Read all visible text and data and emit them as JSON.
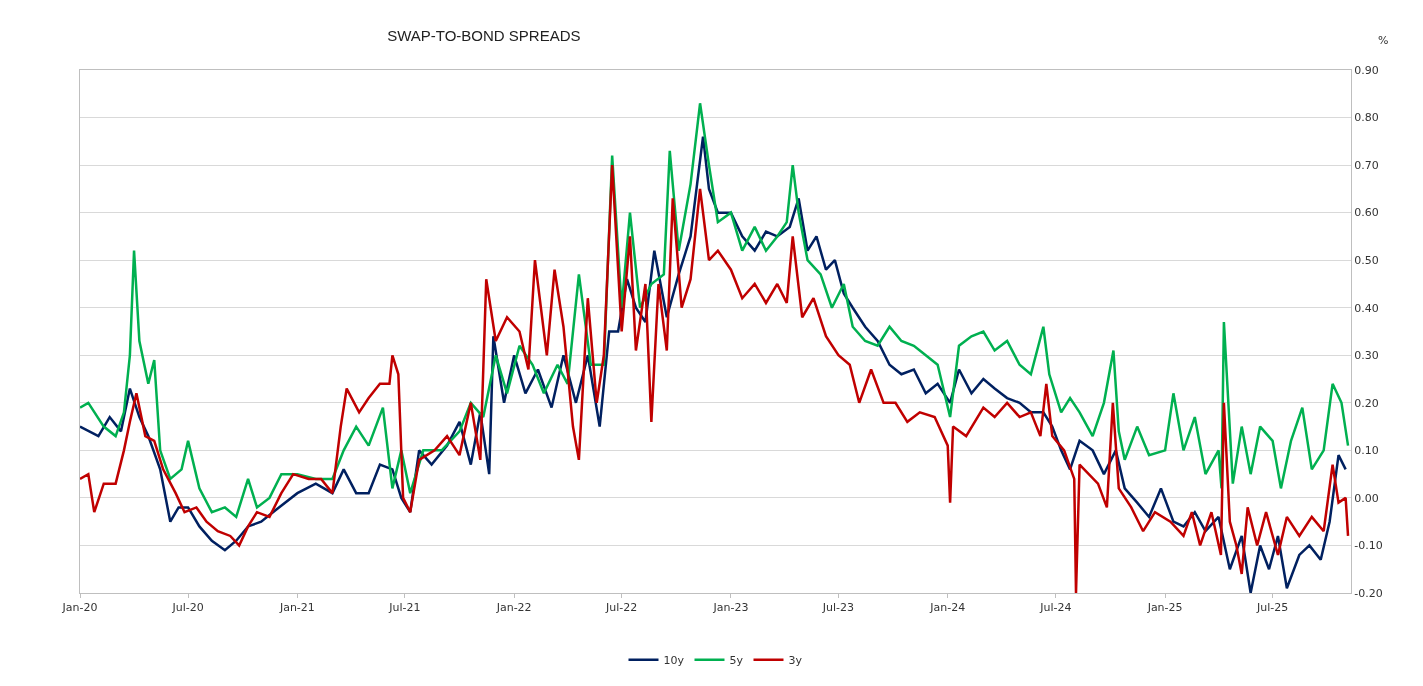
{
  "chart_data": {
    "type": "line",
    "title": "SWAP-TO-BOND SPREADS",
    "ylabel": "%",
    "grid": "y",
    "legend": "bottom",
    "marker": "none",
    "line_style": "solid",
    "xlim": [
      "2020-01-01",
      "2025-11-10"
    ],
    "xticks": [
      {
        "value": "2020-01-01",
        "label": "Jan-20"
      },
      {
        "value": "2020-07-01",
        "label": "Jul-20"
      },
      {
        "value": "2021-01-01",
        "label": "Jan-21"
      },
      {
        "value": "2021-07-01",
        "label": "Jul-21"
      },
      {
        "value": "2022-01-01",
        "label": "Jan-22"
      },
      {
        "value": "2022-07-01",
        "label": "Jul-22"
      },
      {
        "value": "2023-01-01",
        "label": "Jan-23"
      },
      {
        "value": "2023-07-01",
        "label": "Jul-23"
      },
      {
        "value": "2024-01-01",
        "label": "Jan-24"
      },
      {
        "value": "2024-07-01",
        "label": "Jul-24"
      },
      {
        "value": "2025-01-01",
        "label": "Jan-25"
      },
      {
        "value": "2025-07-01",
        "label": "Jul-25"
      }
    ],
    "ylim": [
      -0.2,
      0.9
    ],
    "yticks": [
      {
        "value": -0.2,
        "label": "-0.20"
      },
      {
        "value": -0.1,
        "label": "-0.10"
      },
      {
        "value": 0,
        "label": "0.00"
      },
      {
        "value": 0.1,
        "label": "0.10"
      },
      {
        "value": 0.2,
        "label": "0.20"
      },
      {
        "value": 0.3,
        "label": "0.30"
      },
      {
        "value": 0.4,
        "label": "0.40"
      },
      {
        "value": 0.5,
        "label": "0.50"
      },
      {
        "value": 0.6,
        "label": "0.60"
      },
      {
        "value": 0.7,
        "label": "0.70"
      },
      {
        "value": 0.8,
        "label": "0.80"
      },
      {
        "value": 0.9,
        "label": "0.90"
      }
    ],
    "series": [
      {
        "name": "10y",
        "color": "#002060",
        "x": [
          "2020-01-01",
          "2020-02-01",
          "2020-02-20",
          "2020-03-10",
          "2020-03-25",
          "2020-04-10",
          "2020-04-25",
          "2020-05-15",
          "2020-06-01",
          "2020-06-15",
          "2020-07-01",
          "2020-07-20",
          "2020-08-10",
          "2020-09-01",
          "2020-09-20",
          "2020-10-10",
          "2020-11-01",
          "2020-12-01",
          "2021-01-01",
          "2021-02-01",
          "2021-03-01",
          "2021-03-20",
          "2021-04-10",
          "2021-05-01",
          "2021-05-20",
          "2021-06-10",
          "2021-06-25",
          "2021-07-10",
          "2021-07-25",
          "2021-08-15",
          "2021-09-10",
          "2021-10-01",
          "2021-10-20",
          "2021-11-05",
          "2021-11-20",
          "2021-11-27",
          "2021-12-15",
          "2022-01-01",
          "2022-01-20",
          "2022-02-10",
          "2022-03-05",
          "2022-03-25",
          "2022-04-15",
          "2022-05-05",
          "2022-05-25",
          "2022-06-10",
          "2022-06-25",
          "2022-07-10",
          "2022-07-25",
          "2022-08-10",
          "2022-08-25",
          "2022-09-15",
          "2022-10-05",
          "2022-10-25",
          "2022-11-05",
          "2022-11-15",
          "2022-11-25",
          "2022-12-10",
          "2023-01-01",
          "2023-01-20",
          "2023-02-10",
          "2023-03-01",
          "2023-03-20",
          "2023-04-10",
          "2023-04-25",
          "2023-05-10",
          "2023-05-25",
          "2023-06-10",
          "2023-06-25",
          "2023-07-10",
          "2023-07-25",
          "2023-08-15",
          "2023-09-05",
          "2023-09-25",
          "2023-10-15",
          "2023-11-05",
          "2023-11-25",
          "2023-12-15",
          "2024-01-05",
          "2024-01-20",
          "2024-02-10",
          "2024-03-01",
          "2024-03-20",
          "2024-04-10",
          "2024-05-01",
          "2024-05-20",
          "2024-06-10",
          "2024-06-25",
          "2024-07-10",
          "2024-07-25",
          "2024-08-10",
          "2024-09-01",
          "2024-09-20",
          "2024-10-10",
          "2024-10-25",
          "2024-11-15",
          "2024-12-05",
          "2024-12-25",
          "2025-01-15",
          "2025-02-01",
          "2025-02-20",
          "2025-03-10",
          "2025-04-01",
          "2025-04-20",
          "2025-05-10",
          "2025-05-25",
          "2025-06-10",
          "2025-06-25",
          "2025-07-10",
          "2025-07-25",
          "2025-08-15",
          "2025-09-01",
          "2025-09-20",
          "2025-10-05",
          "2025-10-20",
          "2025-11-01"
        ],
        "values": [
          0.15,
          0.13,
          0.17,
          0.14,
          0.23,
          0.17,
          0.13,
          0.06,
          -0.05,
          -0.02,
          -0.02,
          -0.06,
          -0.09,
          -0.11,
          -0.09,
          -0.06,
          -0.05,
          -0.02,
          0.01,
          0.03,
          0.01,
          0.06,
          0.01,
          0.01,
          0.07,
          0.06,
          0.0,
          -0.03,
          0.1,
          0.07,
          0.11,
          0.16,
          0.07,
          0.18,
          0.05,
          0.34,
          0.2,
          0.3,
          0.22,
          0.27,
          0.19,
          0.3,
          0.2,
          0.3,
          0.15,
          0.35,
          0.35,
          0.46,
          0.4,
          0.37,
          0.52,
          0.38,
          0.47,
          0.55,
          0.66,
          0.76,
          0.65,
          0.6,
          0.6,
          0.55,
          0.52,
          0.56,
          0.55,
          0.57,
          0.63,
          0.52,
          0.55,
          0.48,
          0.5,
          0.43,
          0.4,
          0.36,
          0.33,
          0.28,
          0.26,
          0.27,
          0.22,
          0.24,
          0.2,
          0.27,
          0.22,
          0.25,
          0.23,
          0.21,
          0.2,
          0.18,
          0.18,
          0.15,
          0.1,
          0.06,
          0.12,
          0.1,
          0.05,
          0.1,
          0.02,
          -0.01,
          -0.04,
          0.02,
          -0.05,
          -0.06,
          -0.03,
          -0.07,
          -0.04,
          -0.15,
          -0.08,
          -0.2,
          -0.1,
          -0.15,
          -0.08,
          -0.19,
          -0.12,
          -0.1,
          -0.13,
          -0.05,
          0.09,
          0.06
        ]
      },
      {
        "name": "5y",
        "color": "#00b050",
        "x": [
          "2020-01-01",
          "2020-01-15",
          "2020-02-10",
          "2020-03-01",
          "2020-03-15",
          "2020-03-25",
          "2020-04-01",
          "2020-04-10",
          "2020-04-25",
          "2020-05-05",
          "2020-05-15",
          "2020-06-01",
          "2020-06-20",
          "2020-07-01",
          "2020-07-20",
          "2020-08-10",
          "2020-09-01",
          "2020-09-20",
          "2020-10-10",
          "2020-10-25",
          "2020-11-15",
          "2020-12-05",
          "2021-01-01",
          "2021-02-01",
          "2021-03-01",
          "2021-03-20",
          "2021-04-10",
          "2021-05-01",
          "2021-05-25",
          "2021-06-10",
          "2021-06-25",
          "2021-07-10",
          "2021-08-01",
          "2021-09-01",
          "2021-10-01",
          "2021-10-20",
          "2021-11-10",
          "2021-12-01",
          "2021-12-20",
          "2022-01-10",
          "2022-02-01",
          "2022-02-20",
          "2022-03-15",
          "2022-04-01",
          "2022-04-20",
          "2022-05-10",
          "2022-06-01",
          "2022-06-15",
          "2022-07-01",
          "2022-07-15",
          "2022-08-01",
          "2022-08-20",
          "2022-09-10",
          "2022-09-20",
          "2022-10-05",
          "2022-10-25",
          "2022-11-10",
          "2022-11-25",
          "2022-12-10",
          "2023-01-01",
          "2023-01-20",
          "2023-02-10",
          "2023-03-01",
          "2023-03-20",
          "2023-04-05",
          "2023-04-15",
          "2023-04-25",
          "2023-05-10",
          "2023-06-01",
          "2023-06-20",
          "2023-07-10",
          "2023-07-25",
          "2023-08-15",
          "2023-09-05",
          "2023-09-25",
          "2023-10-15",
          "2023-11-05",
          "2023-11-25",
          "2023-12-15",
          "2024-01-05",
          "2024-01-20",
          "2024-02-10",
          "2024-03-01",
          "2024-03-20",
          "2024-04-10",
          "2024-05-01",
          "2024-05-20",
          "2024-06-10",
          "2024-06-20",
          "2024-07-10",
          "2024-07-25",
          "2024-08-10",
          "2024-09-01",
          "2024-09-20",
          "2024-10-06",
          "2024-10-15",
          "2024-10-25",
          "2024-11-15",
          "2024-12-05",
          "2025-01-01",
          "2025-01-15",
          "2025-02-01",
          "2025-02-20",
          "2025-03-10",
          "2025-04-01",
          "2025-04-06",
          "2025-04-10",
          "2025-04-25",
          "2025-05-10",
          "2025-05-25",
          "2025-06-10",
          "2025-07-01",
          "2025-07-15",
          "2025-08-01",
          "2025-08-20",
          "2025-09-05",
          "2025-09-25",
          "2025-10-10",
          "2025-10-25",
          "2025-11-05"
        ],
        "values": [
          0.19,
          0.2,
          0.15,
          0.13,
          0.18,
          0.3,
          0.52,
          0.33,
          0.24,
          0.29,
          0.1,
          0.04,
          0.06,
          0.12,
          0.02,
          -0.03,
          -0.02,
          -0.04,
          0.04,
          -0.02,
          0.0,
          0.05,
          0.05,
          0.04,
          0.04,
          0.1,
          0.15,
          0.11,
          0.19,
          0.02,
          0.1,
          0.01,
          0.1,
          0.1,
          0.14,
          0.2,
          0.17,
          0.3,
          0.22,
          0.32,
          0.28,
          0.22,
          0.28,
          0.24,
          0.47,
          0.28,
          0.28,
          0.72,
          0.4,
          0.6,
          0.4,
          0.45,
          0.47,
          0.73,
          0.52,
          0.66,
          0.83,
          0.7,
          0.58,
          0.6,
          0.52,
          0.57,
          0.52,
          0.55,
          0.58,
          0.7,
          0.6,
          0.5,
          0.47,
          0.4,
          0.45,
          0.36,
          0.33,
          0.32,
          0.36,
          0.33,
          0.32,
          0.3,
          0.28,
          0.17,
          0.32,
          0.34,
          0.35,
          0.31,
          0.33,
          0.28,
          0.26,
          0.36,
          0.26,
          0.18,
          0.21,
          0.18,
          0.13,
          0.2,
          0.31,
          0.14,
          0.08,
          0.15,
          0.09,
          0.1,
          0.22,
          0.1,
          0.17,
          0.05,
          0.1,
          0.02,
          0.37,
          0.03,
          0.15,
          0.05,
          0.15,
          0.12,
          0.02,
          0.12,
          0.19,
          0.06,
          0.1,
          0.24,
          0.2,
          0.11
        ]
      },
      {
        "name": "3y",
        "color": "#c00000",
        "x": [
          "2020-01-01",
          "2020-01-15",
          "2020-01-25",
          "2020-02-10",
          "2020-03-01",
          "2020-03-15",
          "2020-03-25",
          "2020-04-05",
          "2020-04-20",
          "2020-05-05",
          "2020-05-20",
          "2020-06-10",
          "2020-06-25",
          "2020-07-15",
          "2020-08-01",
          "2020-08-20",
          "2020-09-10",
          "2020-09-25",
          "2020-10-10",
          "2020-10-25",
          "2020-11-15",
          "2020-12-05",
          "2020-12-25",
          "2021-01-20",
          "2021-02-10",
          "2021-03-01",
          "2021-03-15",
          "2021-03-25",
          "2021-04-15",
          "2021-05-01",
          "2021-05-20",
          "2021-06-05",
          "2021-06-10",
          "2021-06-20",
          "2021-06-28",
          "2021-07-10",
          "2021-07-25",
          "2021-08-20",
          "2021-09-10",
          "2021-10-01",
          "2021-10-20",
          "2021-11-05",
          "2021-11-15",
          "2021-12-01",
          "2021-12-20",
          "2022-01-10",
          "2022-01-25",
          "2022-02-05",
          "2022-02-25",
          "2022-03-10",
          "2022-03-25",
          "2022-04-10",
          "2022-04-20",
          "2022-05-05",
          "2022-05-20",
          "2022-06-01",
          "2022-06-15",
          "2022-07-01",
          "2022-07-15",
          "2022-07-25",
          "2022-08-10",
          "2022-08-20",
          "2022-09-01",
          "2022-09-15",
          "2022-09-25",
          "2022-10-10",
          "2022-10-25",
          "2022-11-10",
          "2022-11-25",
          "2022-12-10",
          "2023-01-01",
          "2023-01-20",
          "2023-02-10",
          "2023-03-01",
          "2023-03-20",
          "2023-04-05",
          "2023-04-15",
          "2023-05-01",
          "2023-05-20",
          "2023-06-10",
          "2023-07-01",
          "2023-07-20",
          "2023-08-05",
          "2023-08-25",
          "2023-09-15",
          "2023-10-05",
          "2023-10-25",
          "2023-11-15",
          "2023-12-10",
          "2024-01-01",
          "2024-01-05",
          "2024-01-10",
          "2024-02-01",
          "2024-03-01",
          "2024-03-20",
          "2024-04-10",
          "2024-05-01",
          "2024-05-20",
          "2024-06-05",
          "2024-06-15",
          "2024-06-25",
          "2024-07-15",
          "2024-08-01",
          "2024-08-04",
          "2024-08-10",
          "2024-09-10",
          "2024-09-25",
          "2024-10-05",
          "2024-10-15",
          "2024-11-05",
          "2024-11-25",
          "2024-12-15",
          "2025-01-10",
          "2025-02-01",
          "2025-02-15",
          "2025-03-01",
          "2025-03-20",
          "2025-04-05",
          "2025-04-10",
          "2025-04-20",
          "2025-05-01",
          "2025-05-10",
          "2025-05-20",
          "2025-06-05",
          "2025-06-20",
          "2025-07-10",
          "2025-07-25",
          "2025-08-15",
          "2025-09-05",
          "2025-09-25",
          "2025-10-10",
          "2025-10-20",
          "2025-11-01",
          "2025-11-05"
        ],
        "values": [
          0.04,
          0.05,
          -0.03,
          0.03,
          0.03,
          0.1,
          0.16,
          0.22,
          0.13,
          0.12,
          0.06,
          0.01,
          -0.03,
          -0.02,
          -0.05,
          -0.07,
          -0.08,
          -0.1,
          -0.06,
          -0.03,
          -0.04,
          0.01,
          0.05,
          0.04,
          0.04,
          0.01,
          0.15,
          0.23,
          0.18,
          0.21,
          0.24,
          0.24,
          0.3,
          0.26,
          0.0,
          -0.03,
          0.08,
          0.1,
          0.13,
          0.09,
          0.2,
          0.08,
          0.46,
          0.33,
          0.38,
          0.35,
          0.27,
          0.5,
          0.3,
          0.48,
          0.36,
          0.15,
          0.08,
          0.42,
          0.2,
          0.3,
          0.7,
          0.35,
          0.55,
          0.31,
          0.45,
          0.16,
          0.45,
          0.31,
          0.63,
          0.4,
          0.46,
          0.65,
          0.5,
          0.52,
          0.48,
          0.42,
          0.45,
          0.41,
          0.45,
          0.41,
          0.55,
          0.38,
          0.42,
          0.34,
          0.3,
          0.28,
          0.2,
          0.27,
          0.2,
          0.2,
          0.16,
          0.18,
          0.17,
          0.11,
          -0.01,
          0.15,
          0.13,
          0.19,
          0.17,
          0.2,
          0.17,
          0.18,
          0.13,
          0.24,
          0.13,
          0.1,
          0.04,
          -0.2,
          0.07,
          0.03,
          -0.02,
          0.2,
          0.02,
          -0.02,
          -0.07,
          -0.03,
          -0.05,
          -0.08,
          -0.03,
          -0.1,
          -0.03,
          -0.12,
          0.2,
          -0.05,
          -0.1,
          -0.16,
          -0.02,
          -0.1,
          -0.03,
          -0.12,
          -0.04,
          -0.08,
          -0.04,
          -0.07,
          0.07,
          -0.01,
          0.0,
          -0.08
        ]
      }
    ]
  }
}
